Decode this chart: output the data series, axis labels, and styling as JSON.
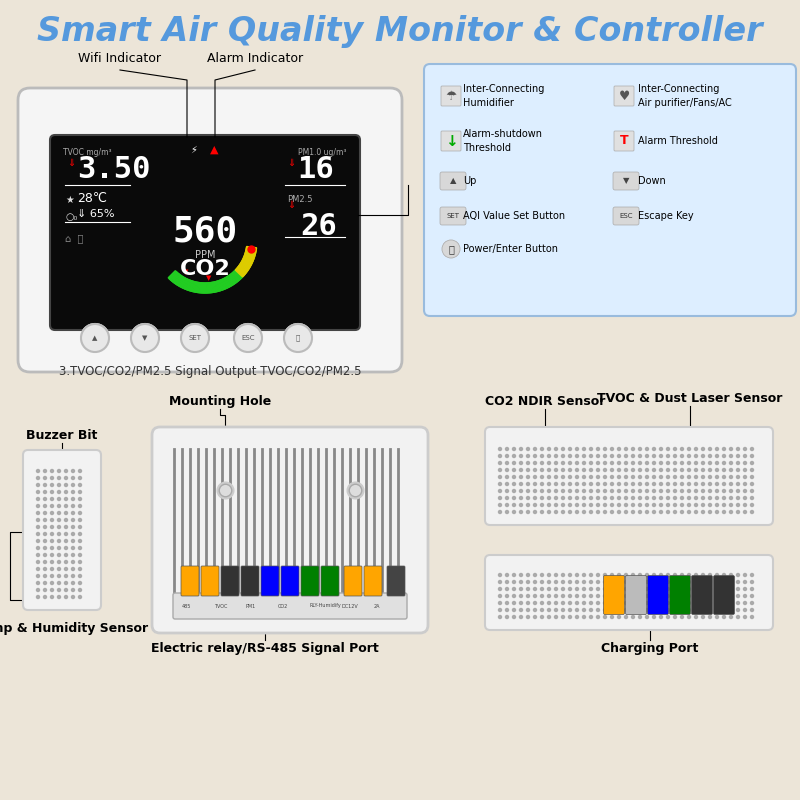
{
  "bg_color": "#ece5d8",
  "title": "Smart Air Quality Monitor & Controller",
  "title_color": "#5599dd",
  "title_fontsize": 24,
  "subtitle_signal": "3.TVOC/CO2/PM2.5 Signal Output TVOC/CO2/PM2.5",
  "label_wifi": "Wifi Indicator",
  "label_alarm": "Alarm Indicator",
  "label_buzzer": "Buzzer Bit",
  "label_temp": "Temp & Humidity Sensor",
  "label_mount": "Mounting Hole",
  "label_relay": "Electric relay/RS-485 Signal Port",
  "label_co2ndir": "CO2 NDIR Sensor",
  "label_tvoc": "TVOC & Dust Laser Sensor",
  "label_charging": "Charging Port"
}
